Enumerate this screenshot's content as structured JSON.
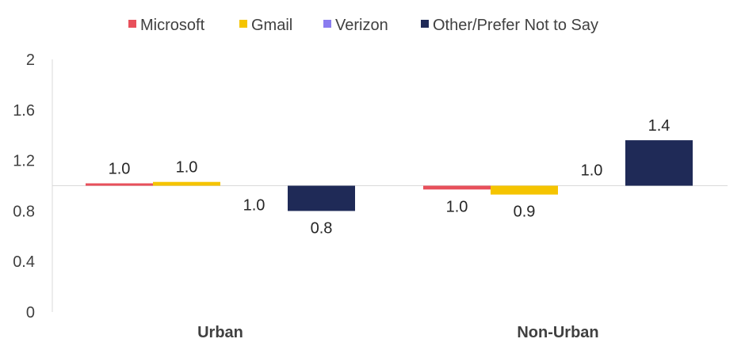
{
  "chart_data": {
    "type": "bar",
    "baseline": 1.0,
    "categories": [
      "Urban",
      "Non-Urban"
    ],
    "series": [
      {
        "name": "Microsoft",
        "color": "#e8505b",
        "values": [
          1.01,
          0.97
        ],
        "labels": [
          "1.0",
          "1.0"
        ]
      },
      {
        "name": "Gmail",
        "color": "#f5c400",
        "values": [
          1.03,
          0.93
        ],
        "labels": [
          "1.0",
          "0.9"
        ]
      },
      {
        "name": "Verizon",
        "color": "#8a7cf0",
        "values": [
          1.0,
          1.0
        ],
        "labels": [
          "1.0",
          "1.0"
        ]
      },
      {
        "name": "Other/Prefer Not to Say",
        "color": "#1f2a57",
        "values": [
          0.8,
          1.36
        ],
        "labels": [
          "0.8",
          "1.4"
        ]
      }
    ],
    "yticks": [
      "0",
      "0.4",
      "0.8",
      "1.2",
      "1.6",
      "2"
    ],
    "ylim": [
      0,
      2
    ],
    "legend_position": "top",
    "grid": false
  }
}
